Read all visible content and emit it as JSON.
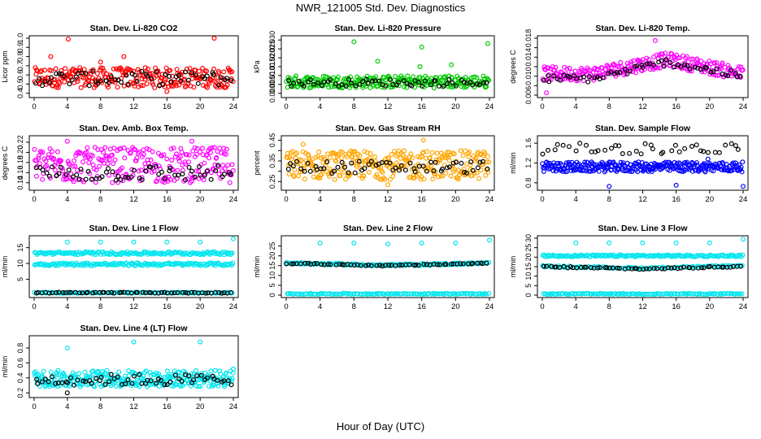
{
  "figure_title": "NWR_121005  Std. Dev. Diagnostics",
  "x_axis_caption": "Hour of Day (UTC)",
  "chart_data": [
    {
      "type": "scatter",
      "title": "Stan. Dev. Li-820 CO2",
      "ylabel": "Licor ppm",
      "xlim": [
        0,
        24
      ],
      "ylim": [
        0.38,
        1.0
      ],
      "xticks": [
        0,
        4,
        8,
        12,
        16,
        20,
        24
      ],
      "yticks": [
        0.4,
        0.5,
        0.6,
        0.7,
        0.8,
        0.9,
        1.0
      ],
      "ytick_labels": [
        "0.4",
        "0.5",
        "0.6",
        "0.7",
        "0.8",
        "0.9",
        "1.0"
      ],
      "series": [
        {
          "name": "samples",
          "color": "#ff0000",
          "n": 260,
          "band": [
            0.46,
            0.68
          ],
          "outliers": [
            [
              2.0,
              0.8
            ],
            [
              4.1,
              0.99
            ],
            [
              8.0,
              0.74
            ],
            [
              10.8,
              0.8
            ],
            [
              21.7,
              1.0
            ],
            [
              16.0,
              0.42
            ]
          ]
        },
        {
          "name": "hourly",
          "color": "#000000",
          "n": 60,
          "band": [
            0.48,
            0.64
          ],
          "outliers": []
        }
      ]
    },
    {
      "type": "scatter",
      "title": "Stan. Dev. Li-820 Pressure",
      "ylabel": "kPa",
      "xlim": [
        0,
        24
      ],
      "ylim": [
        -0.001,
        0.031
      ],
      "xticks": [
        0,
        4,
        8,
        12,
        16,
        20,
        24
      ],
      "yticks": [
        0.0,
        0.005,
        0.01,
        0.015,
        0.02,
        0.025,
        0.03
      ],
      "ytick_labels": [
        "0.000",
        "0.005",
        "0.010",
        "0.015",
        "0.020",
        "0.025",
        "0.030"
      ],
      "series": [
        {
          "name": "samples",
          "color": "#00cc00",
          "n": 260,
          "band": [
            0.003,
            0.01
          ],
          "outliers": [
            [
              8.0,
              0.029
            ],
            [
              23.8,
              0.028
            ],
            [
              16.0,
              0.026
            ],
            [
              10.8,
              0.018
            ],
            [
              15.8,
              0.015
            ],
            [
              19.5,
              0.016
            ]
          ]
        },
        {
          "name": "hourly",
          "color": "#000000",
          "n": 60,
          "band": [
            0.004,
            0.008
          ],
          "outliers": []
        }
      ]
    },
    {
      "type": "scatter",
      "title": "Stan. Dev. Li-820 Temp.",
      "ylabel": "degrees C",
      "xlim": [
        0,
        24
      ],
      "ylim": [
        0.006,
        0.018
      ],
      "xticks": [
        0,
        4,
        8,
        12,
        16,
        20,
        24
      ],
      "yticks": [
        0.006,
        0.008,
        0.01,
        0.012,
        0.014,
        0.016,
        0.018
      ],
      "ytick_labels": [
        "0.006",
        "",
        "0.010",
        "",
        "0.014",
        "",
        "0.018"
      ],
      "series": [
        {
          "name": "samples",
          "color": "#ff00ff",
          "n": 260,
          "band": "trend",
          "trend": [
            [
              0,
              0.0105
            ],
            [
              6,
              0.0105
            ],
            [
              15,
              0.0135
            ],
            [
              24,
              0.0105
            ]
          ],
          "spread": 0.0015,
          "outliers": [
            [
              13.5,
              0.0175
            ],
            [
              0.5,
              0.0065
            ]
          ]
        },
        {
          "name": "hourly",
          "color": "#000000",
          "n": 60,
          "band": "trend",
          "trend": [
            [
              0,
              0.0095
            ],
            [
              6,
              0.0095
            ],
            [
              15,
              0.013
            ],
            [
              24,
              0.01
            ]
          ],
          "spread": 0.0008,
          "outliers": []
        }
      ]
    },
    {
      "type": "scatter",
      "title": "Stan. Dev. Amb. Box Temp.",
      "ylabel": "degrees C",
      "xlim": [
        0,
        24
      ],
      "ylim": [
        0.13,
        0.228
      ],
      "xticks": [
        0,
        4,
        8,
        12,
        16,
        20,
        24
      ],
      "yticks": [
        0.14,
        0.16,
        0.18,
        0.2,
        0.22
      ],
      "ytick_labels": [
        "0.14",
        "0.16",
        "0.18",
        "0.20",
        "0.22"
      ],
      "series": [
        {
          "name": "samples",
          "color": "#ff00ff",
          "n": 260,
          "band": [
            0.14,
            0.21
          ],
          "outliers": [
            [
              4.0,
              0.222
            ],
            [
              19.0,
              0.222
            ]
          ]
        },
        {
          "name": "hourly",
          "color": "#000000",
          "n": 60,
          "band": [
            0.143,
            0.175
          ],
          "outliers": []
        }
      ]
    },
    {
      "type": "scatter",
      "title": "Stan. Dev. Gas Stream RH",
      "ylabel": "percent",
      "xlim": [
        0,
        24
      ],
      "ylim": [
        0.22,
        0.46
      ],
      "xticks": [
        0,
        4,
        8,
        12,
        16,
        20,
        24
      ],
      "yticks": [
        0.25,
        0.3,
        0.35,
        0.4,
        0.45
      ],
      "ytick_labels": [
        "0.25",
        "",
        "0.35",
        "",
        "0.45"
      ],
      "series": [
        {
          "name": "samples",
          "color": "#ffa500",
          "n": 300,
          "band": [
            0.26,
            0.4
          ],
          "outliers": [
            [
              16.2,
              0.45
            ],
            [
              2.0,
              0.43
            ],
            [
              12.0,
              0.235
            ]
          ]
        },
        {
          "name": "hourly",
          "color": "#000000",
          "n": 60,
          "band": [
            0.29,
            0.35
          ],
          "outliers": []
        }
      ]
    },
    {
      "type": "scatter",
      "title": "Stan. Dev. Sample Flow",
      "ylabel": "ml/min",
      "xlim": [
        0,
        24
      ],
      "ylim": [
        0.7,
        1.7
      ],
      "xticks": [
        0,
        4,
        8,
        12,
        16,
        20,
        24
      ],
      "yticks": [
        0.8,
        1.2,
        1.6
      ],
      "ytick_labels": [
        "0.8",
        "1.2",
        "1.6"
      ],
      "series": [
        {
          "name": "samples",
          "color": "#0000ff",
          "n": 300,
          "band": [
            1.02,
            1.22
          ],
          "outliers": [
            [
              8.0,
              0.73
            ],
            [
              16.0,
              0.75
            ],
            [
              24.0,
              0.73
            ],
            [
              19.8,
              1.28
            ]
          ]
        },
        {
          "name": "hourly",
          "color": "#000000",
          "n": 40,
          "band": [
            1.38,
            1.6
          ],
          "outliers": []
        }
      ]
    },
    {
      "type": "scatter",
      "title": "Stan. Dev. Line 1 Flow",
      "ylabel": "ml/min",
      "xlim": [
        0,
        24
      ],
      "ylim": [
        0,
        18
      ],
      "xticks": [
        0,
        4,
        8,
        12,
        16,
        20,
        24
      ],
      "yticks": [
        5,
        10,
        15
      ],
      "ytick_labels": [
        "5",
        "10",
        "15"
      ],
      "series": [
        {
          "name": "samples-upper",
          "color": "#00e5ee",
          "n": 160,
          "band": [
            12.8,
            13.7
          ],
          "outliers": [
            [
              4.0,
              16.8
            ],
            [
              8.0,
              16.8
            ],
            [
              12.0,
              16.8
            ],
            [
              16.0,
              16.8
            ],
            [
              20.0,
              16.8
            ],
            [
              24.0,
              17.8
            ]
          ]
        },
        {
          "name": "samples-lower",
          "color": "#00e5ee",
          "n": 160,
          "band": [
            9.3,
            10.2
          ],
          "outliers": []
        },
        {
          "name": "samples-base",
          "color": "#00e5ee",
          "n": 120,
          "band": [
            0.6,
            0.9
          ],
          "outliers": []
        },
        {
          "name": "hourly",
          "color": "#000000",
          "n": 60,
          "band": [
            0.6,
            0.9
          ],
          "outliers": []
        }
      ]
    },
    {
      "type": "scatter",
      "title": "Stan. Dev. Line 2 Flow",
      "ylabel": "ml/min",
      "xlim": [
        0,
        24
      ],
      "ylim": [
        0,
        29
      ],
      "xticks": [
        0,
        4,
        8,
        12,
        16,
        20,
        24
      ],
      "yticks": [
        0,
        5,
        10,
        15,
        20,
        25
      ],
      "ytick_labels": [
        "0",
        "5",
        "10",
        "15",
        "20",
        "25"
      ],
      "series": [
        {
          "name": "samples",
          "color": "#00e5ee",
          "n": 160,
          "band": "trend",
          "trend": [
            [
              0,
              16.3
            ],
            [
              12,
              15.2
            ],
            [
              24,
              16.3
            ]
          ],
          "spread": 0.5,
          "outliers": [
            [
              4.0,
              26.5
            ],
            [
              8.0,
              26.5
            ],
            [
              12.0,
              26.0
            ],
            [
              16.0,
              26.5
            ],
            [
              20.0,
              26.5
            ],
            [
              24.0,
              28.0
            ]
          ]
        },
        {
          "name": "samples-base",
          "color": "#00e5ee",
          "n": 120,
          "band": [
            0.4,
            0.9
          ],
          "outliers": []
        },
        {
          "name": "hourly",
          "color": "#000000",
          "n": 60,
          "band": "trend",
          "trend": [
            [
              0,
              16.2
            ],
            [
              12,
              15.0
            ],
            [
              24,
              16.3
            ]
          ],
          "spread": 0.3,
          "outliers": []
        }
      ]
    },
    {
      "type": "scatter",
      "title": "Stan. Dev. Line 3 Flow",
      "ylabel": "ml/min",
      "xlim": [
        0,
        24
      ],
      "ylim": [
        0,
        30
      ],
      "xticks": [
        0,
        4,
        8,
        12,
        16,
        20,
        24
      ],
      "yticks": [
        0,
        5,
        10,
        15,
        20,
        25,
        30
      ],
      "ytick_labels": [
        "0",
        "5",
        "10",
        "15",
        "20",
        "25",
        "30"
      ],
      "series": [
        {
          "name": "samples-upper",
          "color": "#00e5ee",
          "n": 160,
          "band": [
            20.2,
            21.2
          ],
          "outliers": [
            [
              4.0,
              27.5
            ],
            [
              8.0,
              27.5
            ],
            [
              12.0,
              27.5
            ],
            [
              16.0,
              27.5
            ],
            [
              20.0,
              27.5
            ],
            [
              24.0,
              29.5
            ]
          ]
        },
        {
          "name": "samples-mid",
          "color": "#00e5ee",
          "n": 100,
          "band": "trend",
          "trend": [
            [
              0,
              15.2
            ],
            [
              12,
              14.2
            ],
            [
              24,
              15.4
            ]
          ],
          "spread": 0.4,
          "outliers": []
        },
        {
          "name": "samples-base",
          "color": "#00e5ee",
          "n": 120,
          "band": [
            0.4,
            0.9
          ],
          "outliers": []
        },
        {
          "name": "hourly",
          "color": "#000000",
          "n": 60,
          "band": "trend",
          "trend": [
            [
              0,
              15.0
            ],
            [
              12,
              13.8
            ],
            [
              24,
              15.2
            ]
          ],
          "spread": 0.4,
          "outliers": []
        }
      ]
    },
    {
      "type": "scatter",
      "title": "Stan. Dev. Line 4 (LT) Flow",
      "ylabel": "ml/min",
      "xlim": [
        0,
        24
      ],
      "ylim": [
        0.17,
        0.93
      ],
      "xticks": [
        0,
        4,
        8,
        12,
        16,
        20,
        24
      ],
      "yticks": [
        0.2,
        0.4,
        0.6,
        0.8
      ],
      "ytick_labels": [
        "0.2",
        "0.4",
        "0.6",
        "0.8"
      ],
      "series": [
        {
          "name": "samples",
          "color": "#00e5ee",
          "n": 300,
          "band": [
            0.28,
            0.5
          ],
          "outliers": [
            [
              4.0,
              0.8
            ],
            [
              12.0,
              0.88
            ],
            [
              20.0,
              0.88
            ],
            [
              24.0,
              0.52
            ]
          ]
        },
        {
          "name": "hourly",
          "color": "#000000",
          "n": 60,
          "band": [
            0.3,
            0.45
          ],
          "outliers": [
            [
              4.0,
              0.2
            ]
          ]
        }
      ]
    }
  ]
}
